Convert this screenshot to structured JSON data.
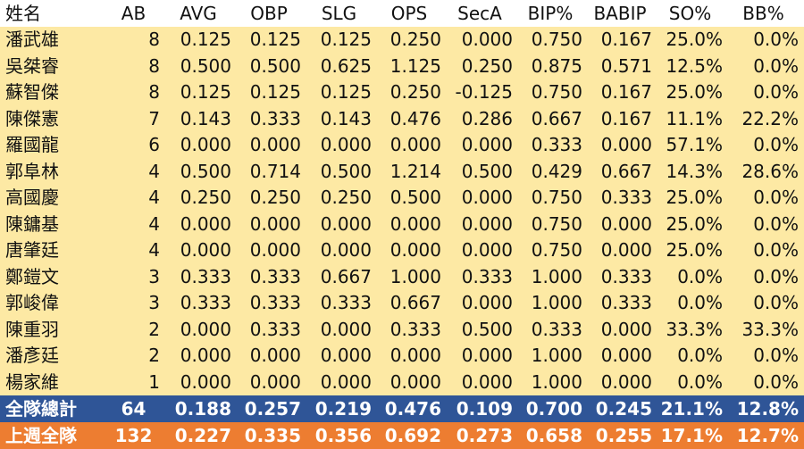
{
  "table": {
    "header": [
      "姓名",
      "AB",
      "AVG",
      "OBP",
      "SLG",
      "OPS",
      "SecA",
      "BIP%",
      "BABIP",
      "SO%",
      "BB%"
    ],
    "rows": [
      [
        "潘武雄",
        "8",
        "0.125",
        "0.125",
        "0.125",
        "0.250",
        "0.000",
        "0.750",
        "0.167",
        "25.0%",
        "0.0%"
      ],
      [
        "吳桀睿",
        "8",
        "0.500",
        "0.500",
        "0.625",
        "1.125",
        "0.250",
        "0.875",
        "0.571",
        "12.5%",
        "0.0%"
      ],
      [
        "蘇智傑",
        "8",
        "0.125",
        "0.125",
        "0.125",
        "0.250",
        "-0.125",
        "0.750",
        "0.167",
        "25.0%",
        "0.0%"
      ],
      [
        "陳傑憲",
        "7",
        "0.143",
        "0.333",
        "0.143",
        "0.476",
        "0.286",
        "0.667",
        "0.167",
        "11.1%",
        "22.2%"
      ],
      [
        "羅國龍",
        "6",
        "0.000",
        "0.000",
        "0.000",
        "0.000",
        "0.000",
        "0.333",
        "0.000",
        "57.1%",
        "0.0%"
      ],
      [
        "郭阜林",
        "4",
        "0.500",
        "0.714",
        "0.500",
        "1.214",
        "0.500",
        "0.429",
        "0.667",
        "14.3%",
        "28.6%"
      ],
      [
        "高國慶",
        "4",
        "0.250",
        "0.250",
        "0.250",
        "0.500",
        "0.000",
        "0.750",
        "0.333",
        "25.0%",
        "0.0%"
      ],
      [
        "陳鏞基",
        "4",
        "0.000",
        "0.000",
        "0.000",
        "0.000",
        "0.000",
        "0.750",
        "0.000",
        "25.0%",
        "0.0%"
      ],
      [
        "唐肇廷",
        "4",
        "0.000",
        "0.000",
        "0.000",
        "0.000",
        "0.000",
        "0.750",
        "0.000",
        "25.0%",
        "0.0%"
      ],
      [
        "鄭鎧文",
        "3",
        "0.333",
        "0.333",
        "0.667",
        "1.000",
        "0.333",
        "1.000",
        "0.333",
        "0.0%",
        "0.0%"
      ],
      [
        "郭峻偉",
        "3",
        "0.333",
        "0.333",
        "0.333",
        "0.667",
        "0.000",
        "1.000",
        "0.333",
        "0.0%",
        "0.0%"
      ],
      [
        "陳重羽",
        "2",
        "0.000",
        "0.333",
        "0.000",
        "0.333",
        "0.500",
        "0.333",
        "0.000",
        "33.3%",
        "33.3%"
      ],
      [
        "潘彥廷",
        "2",
        "0.000",
        "0.000",
        "0.000",
        "0.000",
        "0.000",
        "1.000",
        "0.000",
        "0.0%",
        "0.0%"
      ],
      [
        "楊家維",
        "1",
        "0.000",
        "0.000",
        "0.000",
        "0.000",
        "0.000",
        "1.000",
        "0.000",
        "0.0%",
        "0.0%"
      ]
    ],
    "totals": [
      [
        "全隊總計",
        "64",
        "0.188",
        "0.257",
        "0.219",
        "0.476",
        "0.109",
        "0.700",
        "0.245",
        "21.1%",
        "12.8%"
      ],
      [
        "上週全隊",
        "132",
        "0.227",
        "0.335",
        "0.356",
        "0.692",
        "0.273",
        "0.658",
        "0.255",
        "17.1%",
        "12.7%"
      ]
    ]
  }
}
